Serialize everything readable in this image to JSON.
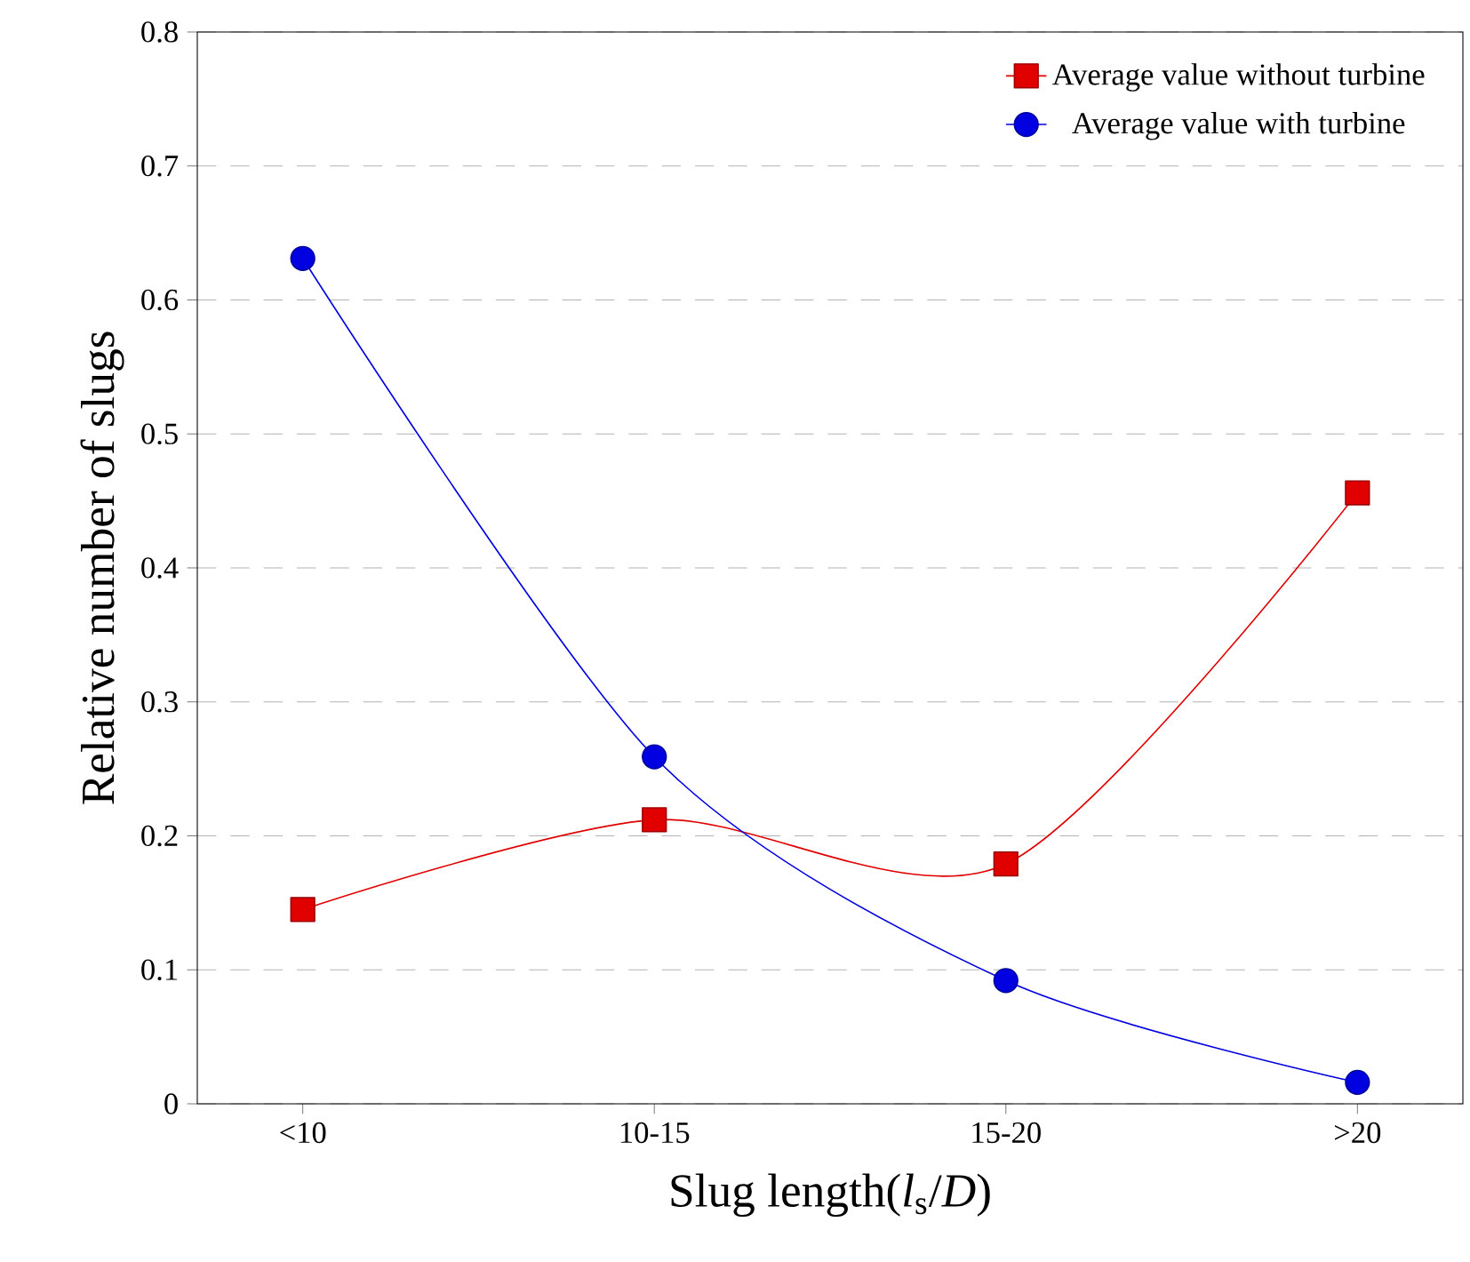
{
  "chart_data": {
    "type": "line",
    "xlabel": "Slug length(*l*$_{s}$/*D*)",
    "ylabel": "Relative number of slugs",
    "categories": [
      "<10",
      "10-15",
      "15-20",
      ">20"
    ],
    "series": [
      {
        "name": "Average value without turbine",
        "color": "#e00000",
        "marker": "square",
        "values": [
          0.145,
          0.212,
          0.179,
          0.456
        ]
      },
      {
        "name": "Average value with turbine",
        "color": "#0000e0",
        "marker": "circle",
        "values": [
          0.631,
          0.259,
          0.092,
          0.016
        ]
      }
    ],
    "ylim": [
      0,
      0.8
    ],
    "yticks": [
      0,
      0.1,
      0.2,
      0.3,
      0.4,
      0.5,
      0.6,
      0.7,
      0.8
    ],
    "grid": "y",
    "legend": "top right",
    "line_style": "solid"
  }
}
